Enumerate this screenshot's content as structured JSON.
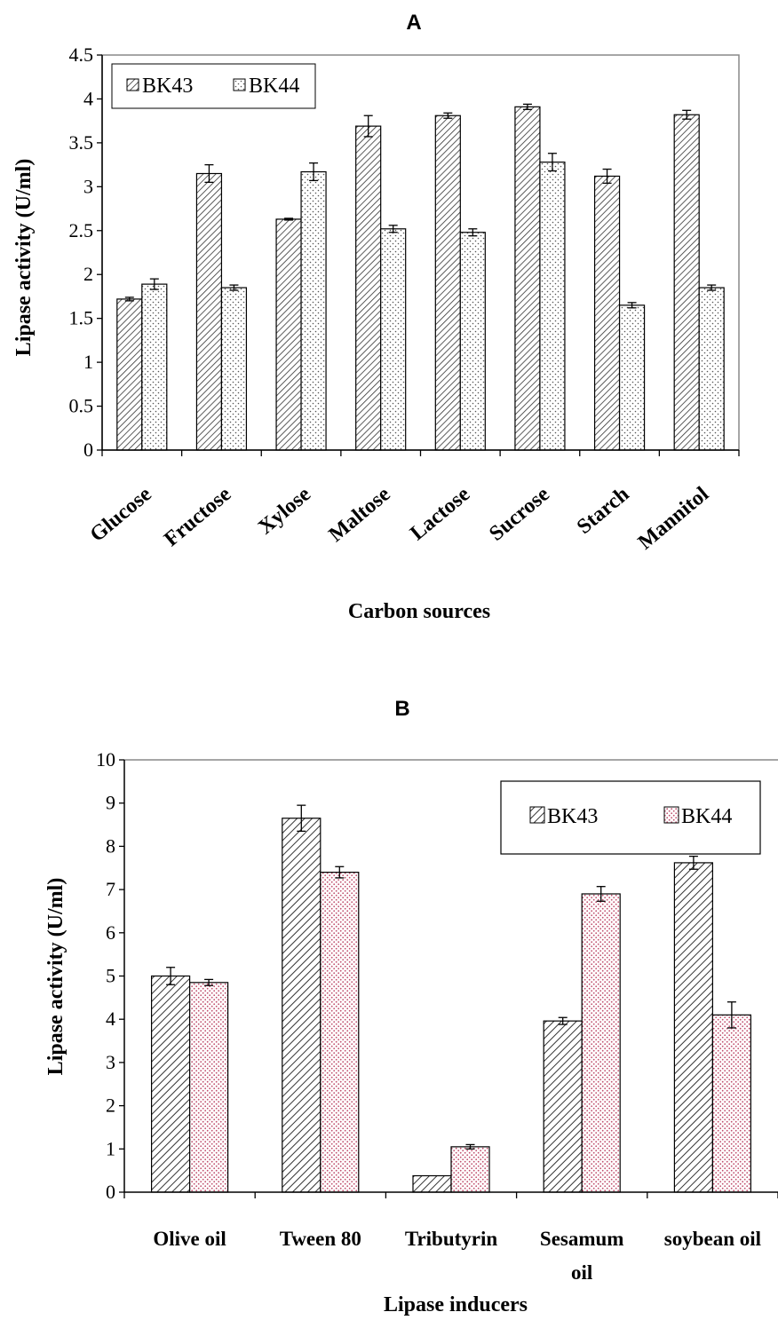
{
  "chart_data": [
    {
      "type": "bar",
      "title": "A",
      "xlabel": "Carbon sources",
      "ylabel": "Lipase activity (U/ml)",
      "ylim": [
        0,
        4.5
      ],
      "yticks": [
        "0",
        "0.5",
        "1",
        "1.5",
        "2",
        "2.5",
        "3",
        "3.5",
        "4",
        "4.5"
      ],
      "categories": [
        "Glucose",
        "Fructose",
        "Xylose",
        "Maltose",
        "Lactose",
        "Sucrose",
        "Starch",
        "Mannitol"
      ],
      "series": [
        {
          "name": "BK43",
          "values": [
            1.72,
            3.15,
            2.63,
            3.69,
            3.81,
            3.91,
            3.12,
            3.82
          ],
          "errors": [
            0.02,
            0.1,
            0.01,
            0.12,
            0.03,
            0.03,
            0.08,
            0.05
          ]
        },
        {
          "name": "BK44",
          "values": [
            1.89,
            1.85,
            3.17,
            2.52,
            2.48,
            3.28,
            1.65,
            1.85
          ],
          "errors": [
            0.06,
            0.03,
            0.1,
            0.04,
            0.04,
            0.1,
            0.03,
            0.03
          ]
        }
      ],
      "legend_position": "top-left",
      "grid": false
    },
    {
      "type": "bar",
      "title": "B",
      "xlabel": "Lipase inducers",
      "ylabel": "Lipase activity (U/ml)",
      "ylim": [
        0,
        10
      ],
      "yticks": [
        "0",
        "1",
        "2",
        "3",
        "4",
        "5",
        "6",
        "7",
        "8",
        "9",
        "10"
      ],
      "categories": [
        "Olive oil",
        "Tween 80",
        "Tributyrin",
        "Sesamum oil",
        "soybean oil"
      ],
      "series": [
        {
          "name": "BK43",
          "values": [
            5.0,
            8.65,
            0.38,
            3.96,
            7.62
          ],
          "errors": [
            0.2,
            0.3,
            0.0,
            0.08,
            0.15
          ]
        },
        {
          "name": "BK44",
          "values": [
            4.85,
            7.4,
            1.05,
            6.9,
            4.1
          ],
          "errors": [
            0.07,
            0.13,
            0.05,
            0.17,
            0.3
          ]
        }
      ],
      "legend_position": "top-right",
      "grid": false
    }
  ],
  "colors": {
    "bk43_hatch": "#333333",
    "bk44_dots_a": "#555555",
    "bk44_dots_b": "#c0506e"
  }
}
